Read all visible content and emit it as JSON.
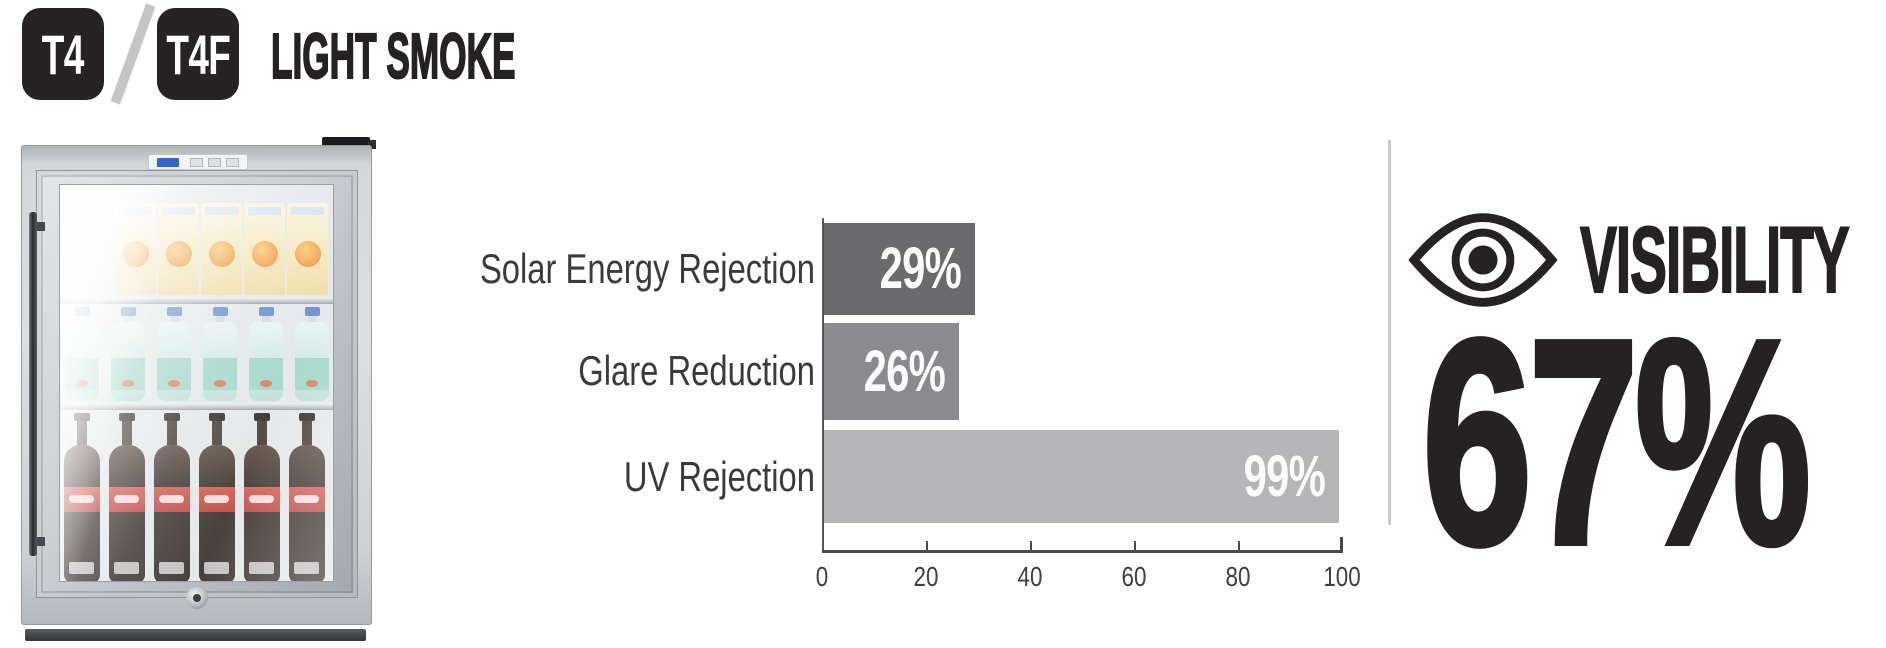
{
  "header": {
    "badge_t4": "T4",
    "separator": "/",
    "badge_t4f": "T4F",
    "product_name": "LIGHT SMOKE"
  },
  "fridge": {
    "description": "Stainless steel glass-door beverage cooler stocked with juice cartons, bottled water and cola bottles"
  },
  "chart_data": {
    "type": "bar",
    "orientation": "horizontal",
    "categories": [
      "Solar Energy Rejection",
      "Glare Reduction",
      "UV Rejection"
    ],
    "values": [
      29,
      26,
      99
    ],
    "value_labels": [
      "29%",
      "26%",
      "99%"
    ],
    "bar_colors": [
      "#6b6b6e",
      "#8b8b8f",
      "#b6b6b9"
    ],
    "xlim": [
      0,
      100
    ],
    "x_ticks": [
      "0",
      "20",
      "40",
      "60",
      "80",
      "100"
    ],
    "grid": false,
    "legend": false
  },
  "visibility": {
    "icon": "eye-icon",
    "label": "VISIBILITY",
    "value": "67%"
  },
  "colors": {
    "badge_bg": "#272324",
    "slash": "#c5c5c7",
    "text_dark": "#262223",
    "divider": "#c9cacb",
    "axis": "#4a4a4c",
    "bar_label": "#ffffff"
  }
}
